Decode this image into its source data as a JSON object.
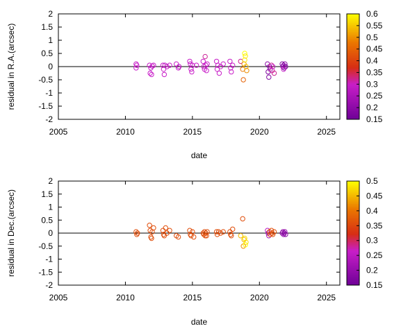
{
  "chart_data": [
    {
      "type": "scatter",
      "xlabel": "date",
      "ylabel": "residual in R.A.(arcsec)",
      "xlim": [
        2005,
        2026
      ],
      "ylim": [
        -2,
        2
      ],
      "xticks": [
        "2005",
        "2010",
        "2015",
        "2020",
        "2025"
      ],
      "yticks": [
        "-2",
        "-1.5",
        "-1",
        "-0.5",
        "0",
        "0.5",
        "1",
        "1.5",
        "2"
      ],
      "zero_line": true,
      "colorbar": {
        "range": [
          0.15,
          0.6
        ],
        "ticks": [
          "0.15",
          "0.2",
          "0.25",
          "0.3",
          "0.35",
          "0.4",
          "0.45",
          "0.5",
          "0.55",
          "0.6"
        ]
      },
      "points": [
        {
          "x": 2010.8,
          "y": 0.1,
          "c": 0.3
        },
        {
          "x": 2010.8,
          "y": -0.05,
          "c": 0.3
        },
        {
          "x": 2010.85,
          "y": 0.05,
          "c": 0.3
        },
        {
          "x": 2011.8,
          "y": 0.05,
          "c": 0.3
        },
        {
          "x": 2011.85,
          "y": -0.25,
          "c": 0.3
        },
        {
          "x": 2011.9,
          "y": -0.05,
          "c": 0.28
        },
        {
          "x": 2011.95,
          "y": -0.3,
          "c": 0.3
        },
        {
          "x": 2012.0,
          "y": 0.02,
          "c": 0.3
        },
        {
          "x": 2012.1,
          "y": 0.05,
          "c": 0.3
        },
        {
          "x": 2012.8,
          "y": 0.05,
          "c": 0.3
        },
        {
          "x": 2012.85,
          "y": -0.1,
          "c": 0.3
        },
        {
          "x": 2012.9,
          "y": -0.3,
          "c": 0.3
        },
        {
          "x": 2012.95,
          "y": 0.05,
          "c": 0.28
        },
        {
          "x": 2013.1,
          "y": 0.0,
          "c": 0.3
        },
        {
          "x": 2013.3,
          "y": 0.05,
          "c": 0.3
        },
        {
          "x": 2013.8,
          "y": 0.1,
          "c": 0.3
        },
        {
          "x": 2013.95,
          "y": -0.05,
          "c": 0.3
        },
        {
          "x": 2014.0,
          "y": 0.0,
          "c": 0.28
        },
        {
          "x": 2014.8,
          "y": 0.2,
          "c": 0.3
        },
        {
          "x": 2014.85,
          "y": 0.1,
          "c": 0.3
        },
        {
          "x": 2014.9,
          "y": -0.1,
          "c": 0.3
        },
        {
          "x": 2014.95,
          "y": -0.2,
          "c": 0.3
        },
        {
          "x": 2015.0,
          "y": 0.05,
          "c": 0.3
        },
        {
          "x": 2015.3,
          "y": 0.05,
          "c": 0.3
        },
        {
          "x": 2015.8,
          "y": 0.2,
          "c": 0.3
        },
        {
          "x": 2015.85,
          "y": 0.0,
          "c": 0.3
        },
        {
          "x": 2015.9,
          "y": -0.1,
          "c": 0.3
        },
        {
          "x": 2015.95,
          "y": 0.38,
          "c": 0.32
        },
        {
          "x": 2016.0,
          "y": 0.05,
          "c": 0.3
        },
        {
          "x": 2016.05,
          "y": -0.15,
          "c": 0.3
        },
        {
          "x": 2016.1,
          "y": 0.1,
          "c": 0.3
        },
        {
          "x": 2016.8,
          "y": 0.2,
          "c": 0.3
        },
        {
          "x": 2016.85,
          "y": -0.1,
          "c": 0.3
        },
        {
          "x": 2016.9,
          "y": 0.05,
          "c": 0.3
        },
        {
          "x": 2017.0,
          "y": -0.25,
          "c": 0.3
        },
        {
          "x": 2017.1,
          "y": 0.0,
          "c": 0.3
        },
        {
          "x": 2017.3,
          "y": 0.1,
          "c": 0.3
        },
        {
          "x": 2017.8,
          "y": 0.2,
          "c": 0.3
        },
        {
          "x": 2017.85,
          "y": -0.05,
          "c": 0.3
        },
        {
          "x": 2017.9,
          "y": -0.2,
          "c": 0.3
        },
        {
          "x": 2018.0,
          "y": 0.05,
          "c": 0.3
        },
        {
          "x": 2018.6,
          "y": 0.2,
          "c": 0.32
        },
        {
          "x": 2018.75,
          "y": -0.1,
          "c": 0.48
        },
        {
          "x": 2018.8,
          "y": -0.5,
          "c": 0.45
        },
        {
          "x": 2018.85,
          "y": 0.1,
          "c": 0.5
        },
        {
          "x": 2018.9,
          "y": 0.25,
          "c": 0.58
        },
        {
          "x": 2018.95,
          "y": 0.4,
          "c": 0.58
        },
        {
          "x": 2019.0,
          "y": 0.0,
          "c": 0.55
        },
        {
          "x": 2019.05,
          "y": -0.15,
          "c": 0.5
        },
        {
          "x": 2018.9,
          "y": 0.5,
          "c": 0.6
        },
        {
          "x": 2020.6,
          "y": 0.1,
          "c": 0.2
        },
        {
          "x": 2020.65,
          "y": -0.2,
          "c": 0.18
        },
        {
          "x": 2020.7,
          "y": -0.4,
          "c": 0.18
        },
        {
          "x": 2020.75,
          "y": 0.0,
          "c": 0.2
        },
        {
          "x": 2020.8,
          "y": -0.1,
          "c": 0.22
        },
        {
          "x": 2020.9,
          "y": 0.05,
          "c": 0.32
        },
        {
          "x": 2020.95,
          "y": -0.15,
          "c": 0.32
        },
        {
          "x": 2021.0,
          "y": 0.0,
          "c": 0.3
        },
        {
          "x": 2021.1,
          "y": -0.25,
          "c": 0.32
        },
        {
          "x": 2021.7,
          "y": 0.1,
          "c": 0.18
        },
        {
          "x": 2021.75,
          "y": 0.0,
          "c": 0.2
        },
        {
          "x": 2021.8,
          "y": 0.05,
          "c": 0.2
        },
        {
          "x": 2021.85,
          "y": -0.05,
          "c": 0.18
        },
        {
          "x": 2021.9,
          "y": 0.1,
          "c": 0.2
        },
        {
          "x": 2021.95,
          "y": 0.0,
          "c": 0.18
        },
        {
          "x": 2021.8,
          "y": -0.1,
          "c": 0.3
        }
      ]
    },
    {
      "type": "scatter",
      "xlabel": "date",
      "ylabel": "residual in Dec.(arcsec)",
      "xlim": [
        2005,
        2026
      ],
      "ylim": [
        -2,
        2
      ],
      "xticks": [
        "2005",
        "2010",
        "2015",
        "2020",
        "2025"
      ],
      "yticks": [
        "-2",
        "-1.5",
        "-1",
        "-0.5",
        "0",
        "0.5",
        "1",
        "1.5",
        "2"
      ],
      "zero_line": true,
      "colorbar": {
        "range": [
          0.15,
          0.5
        ],
        "ticks": [
          "0.15",
          "0.2",
          "0.25",
          "0.3",
          "0.35",
          "0.4",
          "0.45",
          "0.5"
        ]
      },
      "points": [
        {
          "x": 2010.8,
          "y": 0.05,
          "c": 0.36
        },
        {
          "x": 2010.85,
          "y": -0.05,
          "c": 0.36
        },
        {
          "x": 2010.9,
          "y": 0.0,
          "c": 0.36
        },
        {
          "x": 2011.8,
          "y": 0.3,
          "c": 0.36
        },
        {
          "x": 2011.85,
          "y": 0.1,
          "c": 0.36
        },
        {
          "x": 2011.9,
          "y": -0.15,
          "c": 0.36
        },
        {
          "x": 2011.95,
          "y": -0.2,
          "c": 0.36
        },
        {
          "x": 2012.0,
          "y": 0.05,
          "c": 0.36
        },
        {
          "x": 2012.1,
          "y": 0.2,
          "c": 0.36
        },
        {
          "x": 2012.8,
          "y": 0.1,
          "c": 0.36
        },
        {
          "x": 2012.85,
          "y": -0.05,
          "c": 0.36
        },
        {
          "x": 2012.9,
          "y": -0.1,
          "c": 0.36
        },
        {
          "x": 2013.0,
          "y": 0.2,
          "c": 0.36
        },
        {
          "x": 2013.1,
          "y": 0.0,
          "c": 0.36
        },
        {
          "x": 2013.3,
          "y": 0.1,
          "c": 0.36
        },
        {
          "x": 2013.8,
          "y": -0.1,
          "c": 0.36
        },
        {
          "x": 2013.95,
          "y": -0.15,
          "c": 0.36
        },
        {
          "x": 2014.8,
          "y": 0.1,
          "c": 0.36
        },
        {
          "x": 2014.85,
          "y": -0.05,
          "c": 0.36
        },
        {
          "x": 2014.9,
          "y": -0.1,
          "c": 0.36
        },
        {
          "x": 2015.0,
          "y": 0.05,
          "c": 0.36
        },
        {
          "x": 2015.1,
          "y": -0.15,
          "c": 0.36
        },
        {
          "x": 2015.8,
          "y": 0.0,
          "c": 0.36
        },
        {
          "x": 2015.85,
          "y": -0.05,
          "c": 0.36
        },
        {
          "x": 2015.9,
          "y": 0.05,
          "c": 0.36
        },
        {
          "x": 2015.95,
          "y": -0.1,
          "c": 0.36
        },
        {
          "x": 2016.0,
          "y": 0.0,
          "c": 0.36
        },
        {
          "x": 2016.05,
          "y": -0.1,
          "c": 0.36
        },
        {
          "x": 2016.1,
          "y": 0.05,
          "c": 0.36
        },
        {
          "x": 2016.8,
          "y": 0.05,
          "c": 0.36
        },
        {
          "x": 2016.85,
          "y": -0.05,
          "c": 0.36
        },
        {
          "x": 2016.95,
          "y": 0.05,
          "c": 0.36
        },
        {
          "x": 2017.1,
          "y": 0.0,
          "c": 0.36
        },
        {
          "x": 2017.3,
          "y": 0.05,
          "c": 0.36
        },
        {
          "x": 2017.8,
          "y": 0.05,
          "c": 0.36
        },
        {
          "x": 2017.85,
          "y": -0.05,
          "c": 0.36
        },
        {
          "x": 2017.9,
          "y": -0.1,
          "c": 0.36
        },
        {
          "x": 2018.0,
          "y": 0.15,
          "c": 0.36
        },
        {
          "x": 2018.6,
          "y": -0.1,
          "c": 0.45
        },
        {
          "x": 2018.75,
          "y": 0.55,
          "c": 0.36
        },
        {
          "x": 2018.8,
          "y": -0.5,
          "c": 0.42
        },
        {
          "x": 2018.85,
          "y": -0.25,
          "c": 0.45
        },
        {
          "x": 2018.9,
          "y": -0.2,
          "c": 0.48
        },
        {
          "x": 2018.95,
          "y": -0.45,
          "c": 0.5
        },
        {
          "x": 2019.0,
          "y": -0.35,
          "c": 0.48
        },
        {
          "x": 2020.6,
          "y": 0.1,
          "c": 0.25
        },
        {
          "x": 2020.65,
          "y": 0.0,
          "c": 0.22
        },
        {
          "x": 2020.7,
          "y": -0.1,
          "c": 0.22
        },
        {
          "x": 2020.75,
          "y": 0.05,
          "c": 0.36
        },
        {
          "x": 2020.8,
          "y": -0.05,
          "c": 0.36
        },
        {
          "x": 2020.9,
          "y": 0.1,
          "c": 0.36
        },
        {
          "x": 2020.95,
          "y": 0.0,
          "c": 0.36
        },
        {
          "x": 2021.0,
          "y": -0.05,
          "c": 0.36
        },
        {
          "x": 2021.1,
          "y": 0.05,
          "c": 0.36
        },
        {
          "x": 2021.7,
          "y": 0.0,
          "c": 0.2
        },
        {
          "x": 2021.75,
          "y": 0.05,
          "c": 0.2
        },
        {
          "x": 2021.8,
          "y": -0.05,
          "c": 0.2
        },
        {
          "x": 2021.85,
          "y": 0.0,
          "c": 0.18
        },
        {
          "x": 2021.9,
          "y": 0.05,
          "c": 0.2
        },
        {
          "x": 2021.95,
          "y": -0.05,
          "c": 0.18
        }
      ]
    }
  ]
}
